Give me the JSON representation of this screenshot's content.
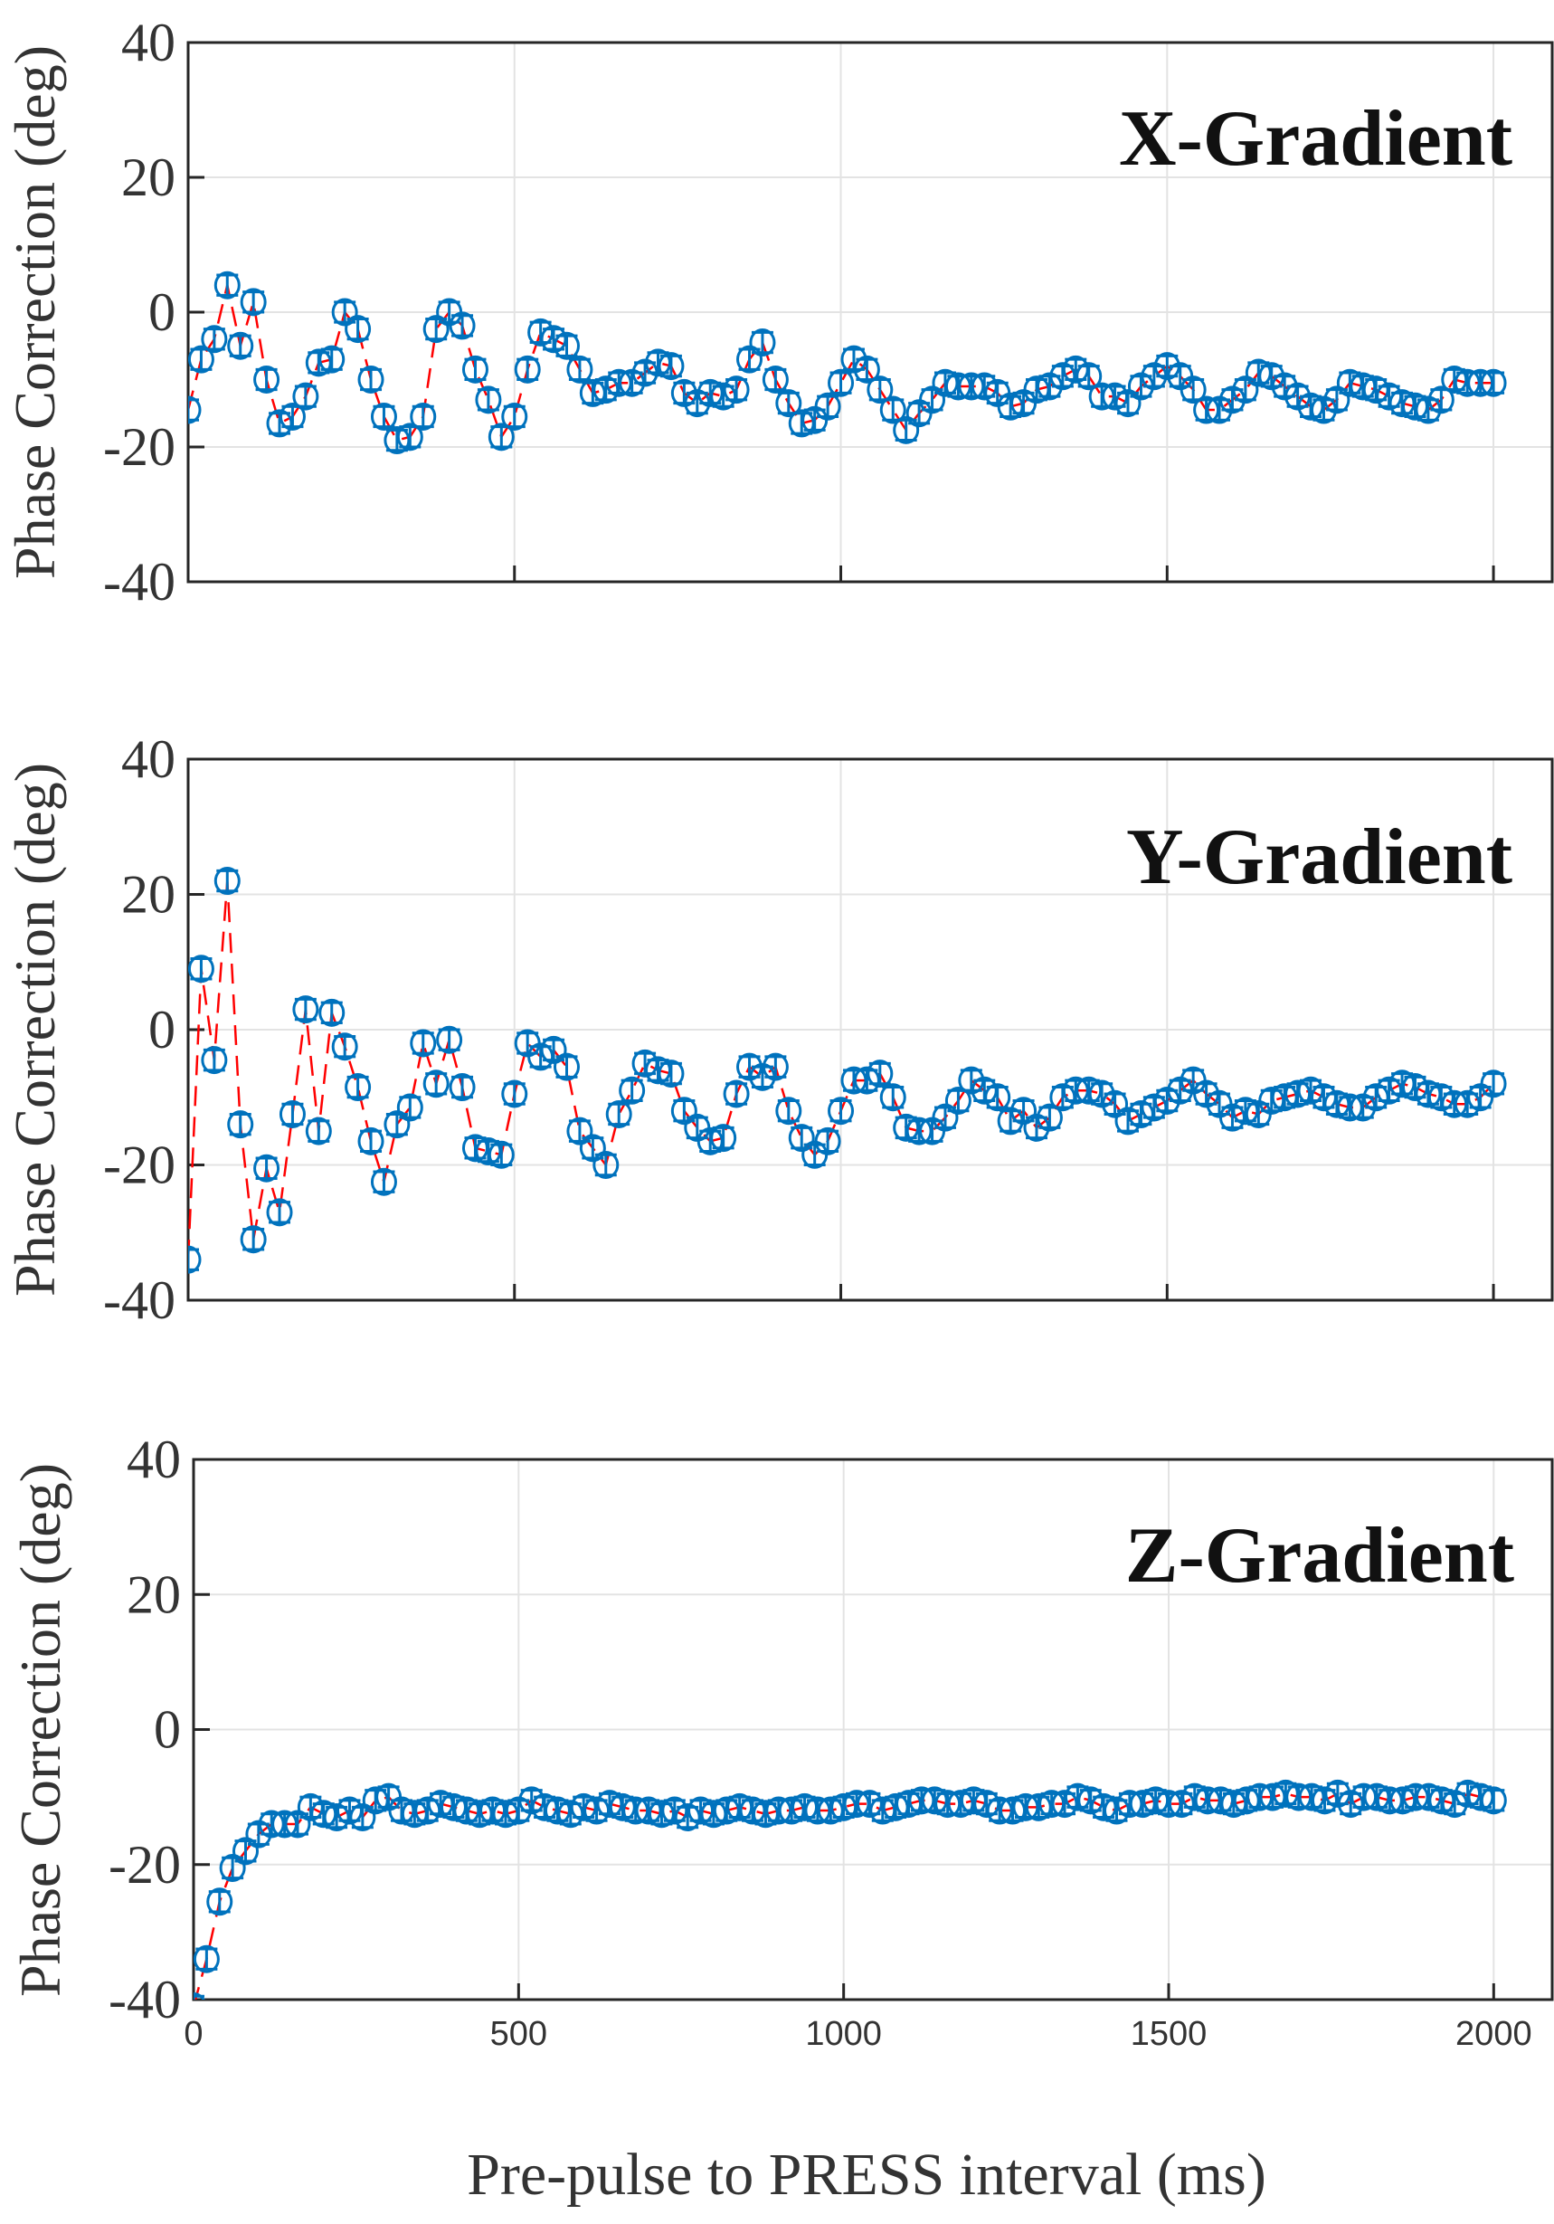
{
  "chart_data": [
    {
      "type": "scatter",
      "title": "X-Gradient",
      "ylabel": "Phase Correction (deg)",
      "xlabel": "",
      "ylim": [
        -40,
        40
      ],
      "xlim": [
        0,
        2090
      ],
      "yticks": [
        "-40",
        "-20",
        "0",
        "20",
        "40"
      ],
      "grid": true,
      "error": 1.5,
      "x_start": 0,
      "x_step": 20,
      "values": [
        -14.5,
        -7,
        -4,
        4,
        -5,
        1.5,
        -10,
        -16.5,
        -15.5,
        -12.5,
        -7.5,
        -7,
        0,
        -2.5,
        -10,
        -15.5,
        -19,
        -18.5,
        -15.5,
        -2.5,
        0,
        -2,
        -8.5,
        -13,
        -18.5,
        -15.5,
        -8.5,
        -3,
        -4,
        -5,
        -8.5,
        -12,
        -11.5,
        -10.5,
        -10.5,
        -9,
        -7.5,
        -8,
        -12,
        -13.5,
        -12,
        -12.5,
        -11.5,
        -7,
        -4.5,
        -10,
        -13.5,
        -16.5,
        -16,
        -14,
        -10.5,
        -7,
        -8.5,
        -11.5,
        -14.5,
        -17.5,
        -15,
        -13,
        -10.5,
        -11,
        -11,
        -11,
        -12,
        -14,
        -13.5,
        -11.5,
        -11,
        -9.5,
        -8.5,
        -9.5,
        -12.5,
        -12.5,
        -13.5,
        -11,
        -9.5,
        -8,
        -9.5,
        -11.5,
        -14.5,
        -14.5,
        -13,
        -11.5,
        -9,
        -9.5,
        -11,
        -12.5,
        -14,
        -14.5,
        -13,
        -10.5,
        -11,
        -11.5,
        -12.5,
        -13.5,
        -14,
        -14.5,
        -13,
        -10,
        -10.5,
        -10.5,
        -10.5
      ]
    },
    {
      "type": "scatter",
      "title": "Y-Gradient",
      "ylabel": "Phase Correction (deg)",
      "xlabel": "",
      "ylim": [
        -40,
        40
      ],
      "xlim": [
        0,
        2090
      ],
      "yticks": [
        "-40",
        "-20",
        "0",
        "20",
        "40"
      ],
      "grid": true,
      "error": 1.5,
      "x_start": 0,
      "x_step": 20,
      "values": [
        -34,
        9,
        -4.5,
        22,
        -14,
        -31,
        -20.5,
        -27,
        -12.5,
        3,
        -15,
        2.5,
        -2.5,
        -8.5,
        -16.5,
        -22.5,
        -14,
        -11.5,
        -2,
        -8,
        -1.5,
        -8.5,
        -17.5,
        -18,
        -18.5,
        -9.5,
        -2,
        -4,
        -3,
        -5.5,
        -15,
        -17.5,
        -20,
        -12.5,
        -9,
        -5,
        -6,
        -6.5,
        -12,
        -14.5,
        -16.5,
        -16,
        -9.5,
        -5.5,
        -7,
        -5.5,
        -12,
        -16,
        -18.5,
        -16.5,
        -12,
        -7.5,
        -7.5,
        -6.5,
        -10,
        -14.5,
        -15,
        -15,
        -13,
        -10.5,
        -7.5,
        -9,
        -10,
        -13.5,
        -12,
        -14.5,
        -13,
        -10,
        -9,
        -9,
        -9.5,
        -11,
        -13.5,
        -12.5,
        -11.5,
        -10.5,
        -9,
        -7.5,
        -9.5,
        -11,
        -13,
        -12,
        -12.5,
        -10.5,
        -10,
        -9.5,
        -9,
        -10,
        -11,
        -11.5,
        -11.5,
        -10,
        -9,
        -8,
        -8.5,
        -9.5,
        -10,
        -11,
        -11,
        -10,
        -8
      ]
    },
    {
      "type": "scatter",
      "title": "Z-Gradient",
      "ylabel": "Phase Correction (deg)",
      "xlabel": "Pre-pulse to PRESS interval (ms)",
      "ylim": [
        -40,
        40
      ],
      "xlim": [
        0,
        2090
      ],
      "yticks": [
        "-40",
        "-20",
        "0",
        "20",
        "40"
      ],
      "xticks": [
        "0",
        "500",
        "1000",
        "1500",
        "2000"
      ],
      "grid": true,
      "error": 1.5,
      "x_start": 0,
      "x_step": 20,
      "values": [
        -41,
        -34,
        -25.5,
        -20.5,
        -18,
        -15.5,
        -14,
        -14,
        -14,
        -11.5,
        -12.5,
        -13,
        -12,
        -13,
        -10.5,
        -10,
        -12,
        -12.5,
        -12,
        -11,
        -11.5,
        -12,
        -12.5,
        -12,
        -12.5,
        -12,
        -10.5,
        -11.5,
        -12,
        -12.5,
        -11.5,
        -12,
        -11,
        -11.5,
        -12,
        -12,
        -12.5,
        -12,
        -13,
        -12,
        -12.5,
        -12,
        -11.5,
        -12,
        -12.5,
        -12,
        -12,
        -11.5,
        -12,
        -12,
        -11.5,
        -11,
        -11,
        -12,
        -11.5,
        -11,
        -10.5,
        -10.5,
        -11,
        -11,
        -10.5,
        -11,
        -12,
        -12,
        -11.5,
        -11.5,
        -11,
        -11,
        -10,
        -10.5,
        -11.5,
        -12,
        -11,
        -11,
        -10.5,
        -11,
        -11,
        -10,
        -10.5,
        -10.5,
        -11,
        -10.5,
        -10,
        -10,
        -9.5,
        -10,
        -10,
        -10.5,
        -9.5,
        -11,
        -10,
        -10,
        -10.5,
        -10.5,
        -10,
        -10,
        -10.5,
        -11,
        -9.5,
        -10,
        -10.5
      ]
    }
  ],
  "colors": {
    "marker": "#0072BD",
    "line": "#FF0000",
    "grid": "#E3E3E3",
    "axis": "#262626"
  }
}
